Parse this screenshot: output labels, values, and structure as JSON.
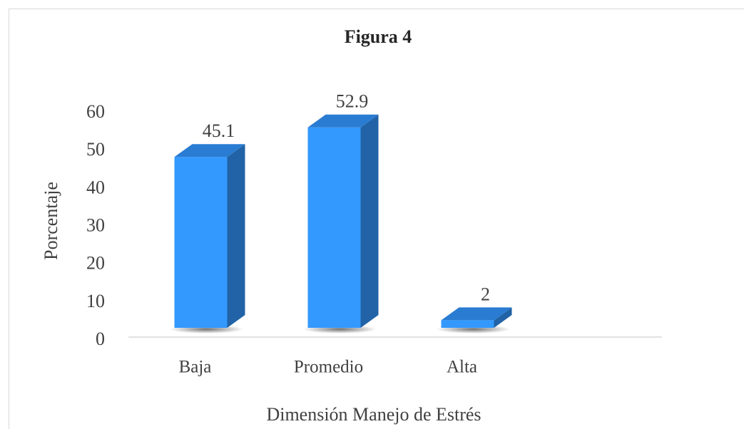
{
  "chart_data": {
    "type": "bar3d",
    "title": "Figura 4",
    "x_label": "Dimensión Manejo de Estrés",
    "y_label": "Porcentaje",
    "categories": [
      "Baja",
      "Promedio",
      "Alta"
    ],
    "values": [
      45.1,
      52.9,
      2
    ],
    "color": "#3399ff",
    "ylim": [
      0,
      60
    ],
    "yticks": [
      0,
      10,
      20,
      30,
      40,
      50,
      60
    ]
  }
}
